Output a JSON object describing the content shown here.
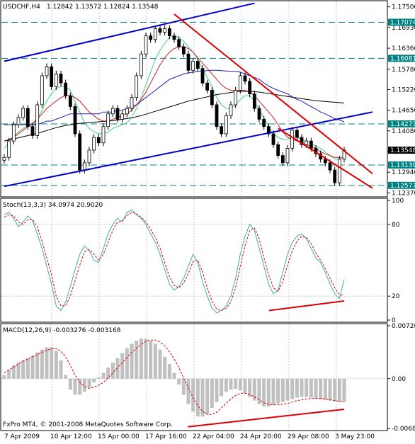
{
  "chart_data": [
    {
      "type": "candlestick",
      "panel": "price",
      "title": "USDCHF,H4",
      "ohlc_label": "1.12842 1.13572 1.12824 1.13548",
      "ylim": [
        1.1228,
        1.1765
      ],
      "y_ticks": [
        "1.17500",
        "1.16930",
        "1.16360",
        "1.15780",
        "1.15220",
        "1.14650",
        "1.14080",
        "1.13510",
        "1.12940",
        "1.12370"
      ],
      "y_tick_values": [
        1.175,
        1.1693,
        1.1636,
        1.1578,
        1.1522,
        1.1465,
        1.1408,
        1.1351,
        1.1294,
        1.1237
      ],
      "horizontal_levels": [
        {
          "label": "1.17074",
          "value": 1.17074
        },
        {
          "label": "1.16081",
          "value": 1.16081
        },
        {
          "label": "1.14273",
          "value": 1.14273
        },
        {
          "label": "1.13139",
          "value": 1.13139
        },
        {
          "label": "1.12577",
          "value": 1.12577
        }
      ],
      "current_price": {
        "label": "1.13548",
        "value": 1.13548
      },
      "closes": [
        1.1335,
        1.138,
        1.1425,
        1.1445,
        1.147,
        1.142,
        1.1395,
        1.148,
        1.156,
        1.1585,
        1.153,
        1.1565,
        1.154,
        1.1505,
        1.1475,
        1.14,
        1.13,
        1.132,
        1.1355,
        1.139,
        1.1375,
        1.142,
        1.1455,
        1.147,
        1.144,
        1.1455,
        1.147,
        1.15,
        1.156,
        1.162,
        1.167,
        1.166,
        1.169,
        1.168,
        1.169,
        1.167,
        1.166,
        1.164,
        1.162,
        1.1575,
        1.16,
        1.158,
        1.154,
        1.152,
        1.148,
        1.142,
        1.14,
        1.145,
        1.148,
        1.152,
        1.156,
        1.1545,
        1.151,
        1.147,
        1.144,
        1.142,
        1.14,
        1.137,
        1.134,
        1.132,
        1.136,
        1.141,
        1.139,
        1.137,
        1.138,
        1.136,
        1.1345,
        1.133,
        1.132,
        1.13,
        1.1265,
        1.133,
        1.1355
      ],
      "trendlines": [
        {
          "name": "upper-channel",
          "color": "#0000cc",
          "from": {
            "bar": 0,
            "value": 1.16
          },
          "to": {
            "bar": 53,
            "value": 1.176
          }
        },
        {
          "name": "lower-channel",
          "color": "#0000cc",
          "from": {
            "bar": 0,
            "value": 1.1255
          },
          "to": {
            "bar": 78,
            "value": 1.146
          }
        },
        {
          "name": "resistance",
          "color": "#dd0000",
          "from": {
            "bar": 36,
            "value": 1.173
          },
          "to": {
            "bar": 78,
            "value": 1.129
          }
        },
        {
          "name": "support",
          "color": "#dd0000",
          "from": {
            "bar": 58,
            "value": 1.1415
          },
          "to": {
            "bar": 78,
            "value": 1.125
          }
        }
      ],
      "moving_averages": [
        {
          "color": "#44cc88",
          "values": [
            1.136,
            1.1375,
            1.139,
            1.1405,
            1.1415,
            1.142,
            1.1425,
            1.144,
            1.1465,
            1.149,
            1.151,
            1.1525,
            1.153,
            1.153,
            1.152,
            1.149,
            1.146,
            1.143,
            1.1415,
            1.1405,
            1.14,
            1.14,
            1.1405,
            1.1415,
            1.142,
            1.1425,
            1.143,
            1.1445,
            1.147,
            1.15,
            1.1535,
            1.157,
            1.1605,
            1.163,
            1.165,
            1.1665,
            1.167,
            1.1665,
            1.1655,
            1.164,
            1.1625,
            1.1605,
            1.158,
            1.1555,
            1.153,
            1.15,
            1.148,
            1.147,
            1.147,
            1.148,
            1.1495,
            1.1505,
            1.1505,
            1.149,
            1.1465,
            1.1445,
            1.142,
            1.14,
            1.139,
            1.1385,
            1.1385,
            1.139,
            1.139,
            1.1385,
            1.138,
            1.1375,
            1.1365,
            1.136,
            1.135,
            1.134,
            1.133,
            1.133,
            1.1335
          ]
        },
        {
          "color": "#cc2222",
          "values": [
            1.138,
            1.1385,
            1.139,
            1.14,
            1.141,
            1.142,
            1.143,
            1.144,
            1.1455,
            1.147,
            1.148,
            1.149,
            1.15,
            1.1505,
            1.1505,
            1.15,
            1.149,
            1.1475,
            1.146,
            1.145,
            1.144,
            1.1435,
            1.1435,
            1.144,
            1.1445,
            1.145,
            1.1455,
            1.1465,
            1.148,
            1.1495,
            1.1515,
            1.154,
            1.1565,
            1.159,
            1.161,
            1.1625,
            1.1635,
            1.164,
            1.164,
            1.1635,
            1.1625,
            1.161,
            1.1595,
            1.158,
            1.1565,
            1.155,
            1.1535,
            1.1525,
            1.152,
            1.152,
            1.152,
            1.152,
            1.1515,
            1.1505,
            1.149,
            1.1475,
            1.146,
            1.1445,
            1.1425,
            1.1405,
            1.139,
            1.1385,
            1.138,
            1.1375,
            1.137,
            1.1365,
            1.136,
            1.135,
            1.1345,
            1.134,
            1.1335,
            1.1335,
            1.1335
          ]
        },
        {
          "color": "#2222aa",
          "values": [
            1.1425,
            1.1425,
            1.1425,
            1.1425,
            1.1425,
            1.1425,
            1.1425,
            1.1425,
            1.143,
            1.1435,
            1.1435,
            1.144,
            1.1445,
            1.145,
            1.1455,
            1.1455,
            1.1455,
            1.1455,
            1.1455,
            1.1455,
            1.1455,
            1.146,
            1.146,
            1.146,
            1.1465,
            1.1465,
            1.147,
            1.1475,
            1.148,
            1.149,
            1.15,
            1.151,
            1.152,
            1.153,
            1.154,
            1.155,
            1.1555,
            1.156,
            1.1565,
            1.1568,
            1.157,
            1.1572,
            1.1573,
            1.1574,
            1.1575,
            1.1575,
            1.1574,
            1.1573,
            1.1572,
            1.1572,
            1.157,
            1.1565,
            1.156,
            1.1555,
            1.155,
            1.154,
            1.1532,
            1.1525,
            1.152,
            1.1515,
            1.151,
            1.1502,
            1.1495,
            1.149,
            1.1482,
            1.1475,
            1.1468,
            1.146,
            1.1455,
            1.1448,
            1.1442,
            1.1438,
            1.1433
          ]
        },
        {
          "color": "#000000",
          "values": [
            1.138,
            1.1383,
            1.1386,
            1.1389,
            1.1392,
            1.1395,
            1.1398,
            1.1401,
            1.1405,
            1.1409,
            1.1413,
            1.1417,
            1.142,
            1.1423,
            1.1425,
            1.1427,
            1.1429,
            1.143,
            1.1431,
            1.1432,
            1.1433,
            1.1434,
            1.1435,
            1.1436,
            1.1438,
            1.144,
            1.1442,
            1.1444,
            1.1447,
            1.145,
            1.1454,
            1.1458,
            1.1462,
            1.1466,
            1.147,
            1.1474,
            1.1478,
            1.1482,
            1.1486,
            1.149,
            1.1493,
            1.1496,
            1.1499,
            1.1502,
            1.1505,
            1.1508,
            1.151,
            1.1512,
            1.1514,
            1.1516,
            1.1517,
            1.1517,
            1.1517,
            1.1516,
            1.1515,
            1.1513,
            1.1511,
            1.1509,
            1.1507,
            1.1505,
            1.1503,
            1.1501,
            1.1499,
            1.1497,
            1.1495,
            1.1493,
            1.1491,
            1.149,
            1.1489,
            1.1488,
            1.1487,
            1.1486,
            1.1485
          ]
        }
      ]
    },
    {
      "type": "line",
      "panel": "stochastic",
      "title": "Stoch(13,3,3) 34.0974 20.9020",
      "ylim": [
        0,
        100
      ],
      "y_ticks": [
        "100",
        "80",
        "20",
        "0"
      ],
      "y_tick_values": [
        100,
        80,
        20,
        0
      ],
      "series": [
        {
          "color": "#44aaaa",
          "values": [
            88,
            90,
            85,
            78,
            82,
            87,
            83,
            72,
            60,
            45,
            30,
            12,
            8,
            15,
            28,
            42,
            55,
            62,
            58,
            50,
            48,
            60,
            72,
            80,
            85,
            82,
            90,
            92,
            88,
            85,
            80,
            72,
            65,
            55,
            42,
            30,
            25,
            28,
            35,
            45,
            55,
            48,
            32,
            20,
            10,
            6,
            8,
            12,
            20,
            35,
            55,
            70,
            80,
            75,
            60,
            45,
            30,
            22,
            25,
            40,
            55,
            65,
            70,
            72,
            68,
            60,
            52,
            48,
            40,
            30,
            22,
            18,
            34
          ]
        },
        {
          "color": "#dd0000",
          "dashed": true,
          "values": [
            86,
            88,
            87,
            82,
            80,
            84,
            84,
            78,
            66,
            52,
            38,
            20,
            12,
            12,
            20,
            33,
            46,
            57,
            59,
            55,
            50,
            55,
            65,
            75,
            82,
            83,
            87,
            90,
            89,
            86,
            82,
            76,
            69,
            60,
            48,
            36,
            29,
            27,
            31,
            39,
            49,
            50,
            40,
            27,
            16,
            9,
            8,
            10,
            15,
            27,
            45,
            62,
            75,
            77,
            68,
            52,
            38,
            27,
            24,
            32,
            46,
            58,
            66,
            70,
            69,
            64,
            56,
            50,
            43,
            35,
            27,
            21,
            21
          ]
        }
      ]
    },
    {
      "type": "bar",
      "panel": "macd",
      "title": "MACD(12,26,9) -0.003276 -0.003168",
      "ylim": [
        -0.00682,
        0.00726
      ],
      "y_ticks": [
        "0.00726",
        "0.00",
        "-0.00682"
      ],
      "y_tick_values": [
        0.00726,
        0,
        -0.00682
      ],
      "histogram": [
        0.0005,
        0.0012,
        0.0018,
        0.0022,
        0.0025,
        0.0028,
        0.0032,
        0.0036,
        0.004,
        0.0043,
        0.0043,
        0.0038,
        0.0025,
        0.0005,
        -0.0015,
        -0.0022,
        -0.0022,
        -0.0018,
        -0.0012,
        -0.0005,
        0.0002,
        0.0008,
        0.0015,
        0.0022,
        0.0028,
        0.0035,
        0.0042,
        0.0048,
        0.0052,
        0.0055,
        0.0055,
        0.0052,
        0.0048,
        0.004,
        0.003,
        0.002,
        0.0008,
        -0.0008,
        -0.0022,
        -0.0035,
        -0.0045,
        -0.0052,
        -0.0052,
        -0.0048,
        -0.004,
        -0.0032,
        -0.0024,
        -0.0018,
        -0.0015,
        -0.0014,
        -0.0016,
        -0.002,
        -0.0025,
        -0.003,
        -0.0035,
        -0.0038,
        -0.0038,
        -0.0036,
        -0.0034,
        -0.0032,
        -0.003,
        -0.0028,
        -0.0026,
        -0.0025,
        -0.0025,
        -0.0026,
        -0.0027,
        -0.0028,
        -0.0029,
        -0.003,
        -0.0031,
        -0.0032,
        -0.0032
      ],
      "signal": {
        "color": "#dd0000",
        "dashed": true,
        "values": [
          0.0008,
          0.0012,
          0.0016,
          0.002,
          0.0024,
          0.0027,
          0.003,
          0.0033,
          0.0036,
          0.0039,
          0.0041,
          0.0041,
          0.0038,
          0.003,
          0.0018,
          0.0005,
          -0.0005,
          -0.0011,
          -0.0013,
          -0.0012,
          -0.0009,
          -0.0005,
          0.0001,
          0.0008,
          0.0015,
          0.0022,
          0.0029,
          0.0036,
          0.0042,
          0.0047,
          0.0051,
          0.0053,
          0.0053,
          0.005,
          0.0045,
          0.0037,
          0.0027,
          0.0015,
          0.0001,
          -0.0013,
          -0.0026,
          -0.0037,
          -0.0045,
          -0.0049,
          -0.0049,
          -0.0046,
          -0.004,
          -0.0034,
          -0.0028,
          -0.0023,
          -0.002,
          -0.002,
          -0.0022,
          -0.0025,
          -0.0029,
          -0.0033,
          -0.0035,
          -0.0036,
          -0.0036,
          -0.0035,
          -0.0034,
          -0.0032,
          -0.003,
          -0.0029,
          -0.0028,
          -0.0027,
          -0.0027,
          -0.0027,
          -0.0028,
          -0.0029,
          -0.003,
          -0.0031,
          -0.0032
        ]
      }
    }
  ],
  "x_axis_labels": [
    "7 Apr 2009",
    "10 Apr 12:00",
    "15 Apr 00:00",
    "17 Apr 16:00",
    "22 Apr 04:00",
    "24 Apr 20:00",
    "29 Apr 08:00",
    "3 May 23:00"
  ],
  "copyright": "FxPro MT4, © 2001-2008 MetaQuotes Software Corp.",
  "colors": {
    "grid": "#c8c8c8",
    "level": "#008080",
    "bull": "#000000",
    "bear": "#000000",
    "bg": "#ffffff"
  }
}
